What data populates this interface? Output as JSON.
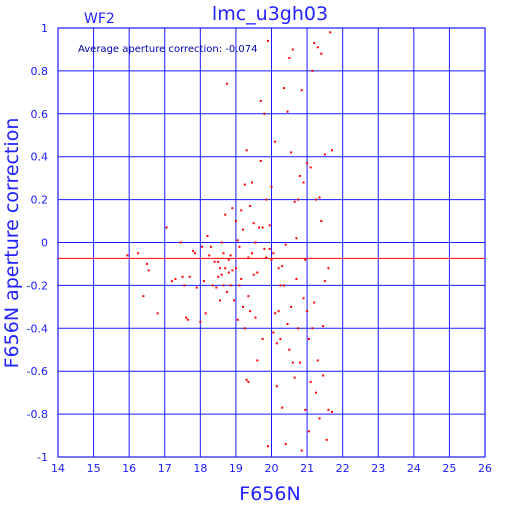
{
  "chart_data": {
    "type": "scatter",
    "title": "lmc_u3gh03",
    "chip_label": "WF2",
    "xlabel": "F656N",
    "ylabel": "F656N aperture correction",
    "annotation": "Average aperture correction: -0.074",
    "xlim": [
      14,
      26
    ],
    "ylim": [
      -1,
      1
    ],
    "xticks": [
      14,
      15,
      16,
      17,
      18,
      19,
      20,
      21,
      22,
      23,
      24,
      25,
      26
    ],
    "yticks": [
      -1,
      -0.8,
      -0.6,
      -0.4,
      -0.2,
      0,
      0.2,
      0.4,
      0.6,
      0.8,
      1
    ],
    "xtick_labels": [
      "14",
      "15",
      "16",
      "17",
      "18",
      "19",
      "20",
      "21",
      "22",
      "23",
      "24",
      "25",
      "26"
    ],
    "ytick_labels": [
      "-1",
      "-0.8",
      "-0.6",
      "-0.4",
      "-0.2",
      "0",
      "0.2",
      "0.4",
      "0.6",
      "0.8",
      "1"
    ],
    "grid": true,
    "average_line": -0.074,
    "colors": {
      "grid": "#1a1aff",
      "points": "#ff0000",
      "average_line": "#ff0000",
      "text": "#2222ff"
    },
    "points": [
      [
        15.95,
        -0.06
      ],
      [
        16.25,
        -0.05
      ],
      [
        16.4,
        -0.25
      ],
      [
        16.5,
        -0.1
      ],
      [
        16.55,
        -0.13
      ],
      [
        16.8,
        -0.33
      ],
      [
        17.05,
        0.07
      ],
      [
        17.2,
        -0.18
      ],
      [
        17.3,
        -0.17
      ],
      [
        17.45,
        0.0
      ],
      [
        17.5,
        -0.16
      ],
      [
        17.55,
        -0.2
      ],
      [
        17.6,
        -0.35
      ],
      [
        17.65,
        -0.36
      ],
      [
        17.7,
        -0.16
      ],
      [
        17.8,
        -0.04
      ],
      [
        17.85,
        -0.05
      ],
      [
        17.9,
        -0.21
      ],
      [
        18.0,
        -0.37
      ],
      [
        18.05,
        -0.02
      ],
      [
        18.1,
        -0.18
      ],
      [
        18.15,
        -0.33
      ],
      [
        18.2,
        0.03
      ],
      [
        18.25,
        -0.06
      ],
      [
        18.3,
        -0.02
      ],
      [
        18.35,
        -0.2
      ],
      [
        18.4,
        -0.09
      ],
      [
        18.45,
        -0.21
      ],
      [
        18.5,
        -0.16
      ],
      [
        18.5,
        -0.09
      ],
      [
        18.55,
        -0.27
      ],
      [
        18.55,
        -0.12
      ],
      [
        18.6,
        0.0
      ],
      [
        18.6,
        -0.15
      ],
      [
        18.65,
        -0.2
      ],
      [
        18.65,
        -0.05
      ],
      [
        18.7,
        0.13
      ],
      [
        18.7,
        -0.12
      ],
      [
        18.75,
        0.74
      ],
      [
        18.75,
        -0.23
      ],
      [
        18.8,
        -0.14
      ],
      [
        18.8,
        -0.08
      ],
      [
        18.85,
        -0.2
      ],
      [
        18.85,
        -0.06
      ],
      [
        18.9,
        0.16
      ],
      [
        18.9,
        -0.13
      ],
      [
        18.95,
        -0.27
      ],
      [
        19.0,
        -0.12
      ],
      [
        19.0,
        0.1
      ],
      [
        19.05,
        0.01
      ],
      [
        19.05,
        -0.36
      ],
      [
        19.1,
        -0.02
      ],
      [
        19.1,
        -0.2
      ],
      [
        19.15,
        0.15
      ],
      [
        19.15,
        -0.17
      ],
      [
        19.2,
        -0.3
      ],
      [
        19.2,
        0.06
      ],
      [
        19.25,
        0.27
      ],
      [
        19.25,
        -0.4
      ],
      [
        19.3,
        -0.64
      ],
      [
        19.3,
        0.43
      ],
      [
        19.35,
        -0.07
      ],
      [
        19.35,
        -0.25
      ],
      [
        19.35,
        -0.65
      ],
      [
        19.4,
        0.17
      ],
      [
        19.4,
        -0.32
      ],
      [
        19.45,
        0.28
      ],
      [
        19.45,
        -0.05
      ],
      [
        19.5,
        0.09
      ],
      [
        19.5,
        -0.15
      ],
      [
        19.55,
        0.0
      ],
      [
        19.55,
        -0.35
      ],
      [
        19.6,
        -0.14
      ],
      [
        19.6,
        -0.55
      ],
      [
        19.65,
        0.07
      ],
      [
        19.7,
        0.66
      ],
      [
        19.7,
        0.38
      ],
      [
        19.75,
        0.07
      ],
      [
        19.75,
        -0.45
      ],
      [
        19.8,
        0.6
      ],
      [
        19.8,
        -0.03
      ],
      [
        19.85,
        0.2
      ],
      [
        19.85,
        -0.07
      ],
      [
        19.9,
        0.94
      ],
      [
        19.9,
        -0.95
      ],
      [
        19.95,
        0.08
      ],
      [
        19.95,
        -0.03
      ],
      [
        20.0,
        -0.08
      ],
      [
        20.0,
        0.26
      ],
      [
        20.05,
        -0.05
      ],
      [
        20.05,
        -0.42
      ],
      [
        20.1,
        0.47
      ],
      [
        20.1,
        -0.33
      ],
      [
        20.15,
        -0.47
      ],
      [
        20.15,
        -0.67
      ],
      [
        20.2,
        -0.12
      ],
      [
        20.2,
        -0.32
      ],
      [
        20.25,
        -0.2
      ],
      [
        20.25,
        -0.45
      ],
      [
        20.3,
        -0.11
      ],
      [
        20.3,
        -0.77
      ],
      [
        20.35,
        0.72
      ],
      [
        20.35,
        -0.2
      ],
      [
        20.4,
        -0.01
      ],
      [
        20.4,
        -0.94
      ],
      [
        20.45,
        0.61
      ],
      [
        20.45,
        -0.38
      ],
      [
        20.5,
        0.86
      ],
      [
        20.5,
        -0.5
      ],
      [
        20.55,
        0.42
      ],
      [
        20.55,
        -0.3
      ],
      [
        20.6,
        0.9
      ],
      [
        20.6,
        -0.56
      ],
      [
        20.65,
        0.19
      ],
      [
        20.65,
        -0.63
      ],
      [
        20.7,
        0.02
      ],
      [
        20.7,
        -0.17
      ],
      [
        20.75,
        0.2
      ],
      [
        20.75,
        -0.4
      ],
      [
        20.8,
        0.31
      ],
      [
        20.8,
        -0.56
      ],
      [
        20.85,
        0.71
      ],
      [
        20.85,
        -0.97
      ],
      [
        20.9,
        0.28
      ],
      [
        20.9,
        -0.26
      ],
      [
        20.95,
        -0.08
      ],
      [
        20.95,
        -0.78
      ],
      [
        21.0,
        0.37
      ],
      [
        21.0,
        -0.32
      ],
      [
        21.05,
        -0.45
      ],
      [
        21.05,
        -0.88
      ],
      [
        21.1,
        0.35
      ],
      [
        21.1,
        -0.65
      ],
      [
        21.15,
        0.8
      ],
      [
        21.15,
        -0.4
      ],
      [
        21.2,
        0.93
      ],
      [
        21.2,
        -0.28
      ],
      [
        21.25,
        0.2
      ],
      [
        21.25,
        -0.7
      ],
      [
        21.3,
        0.91
      ],
      [
        21.3,
        -0.55
      ],
      [
        21.35,
        0.21
      ],
      [
        21.35,
        -0.82
      ],
      [
        21.4,
        0.88
      ],
      [
        21.4,
        0.1
      ],
      [
        21.45,
        -0.39
      ],
      [
        21.45,
        -0.62
      ],
      [
        21.5,
        0.41
      ],
      [
        21.5,
        -0.18
      ],
      [
        21.55,
        -0.92
      ],
      [
        21.6,
        -0.78
      ],
      [
        21.6,
        -0.12
      ],
      [
        21.65,
        0.98
      ],
      [
        21.7,
        0.43
      ],
      [
        21.7,
        -0.79
      ]
    ]
  }
}
